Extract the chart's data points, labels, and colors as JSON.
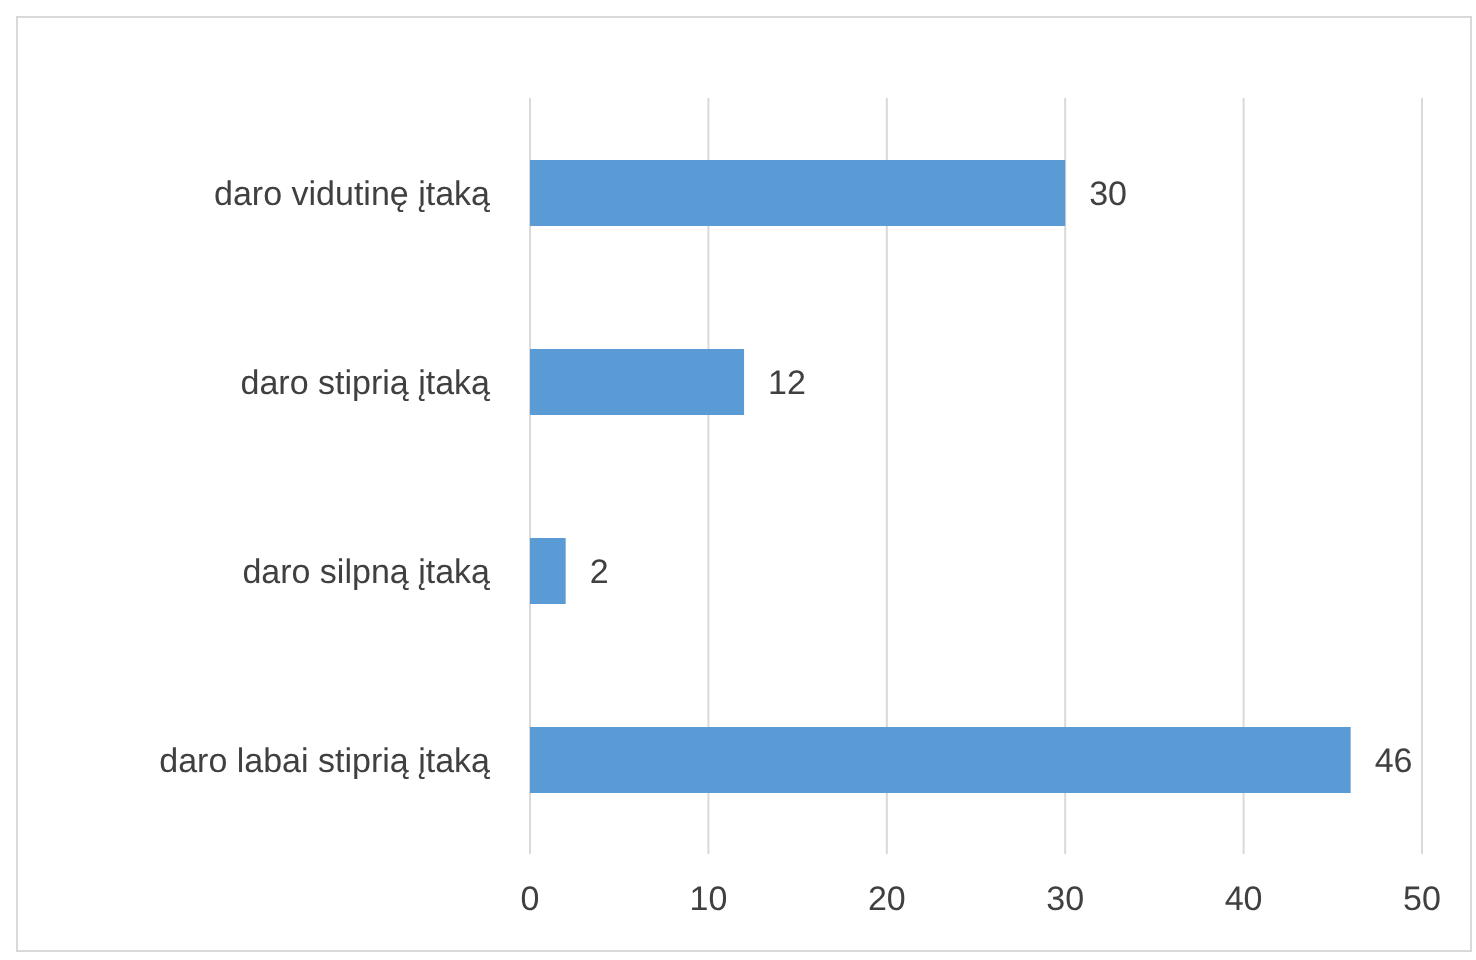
{
  "chart_data": {
    "type": "bar",
    "orientation": "horizontal",
    "categories": [
      "daro vidutinę įtaką",
      "daro stiprią įtaką",
      "daro silpną įtaką",
      "daro labai stiprią įtaką"
    ],
    "values": [
      30,
      12,
      2,
      46
    ],
    "color": "#5b9bd5",
    "xlim": [
      0,
      50
    ],
    "xticks": [
      0,
      10,
      20,
      30,
      40,
      50
    ],
    "grid": "x",
    "data_labels": true,
    "legend": false
  }
}
